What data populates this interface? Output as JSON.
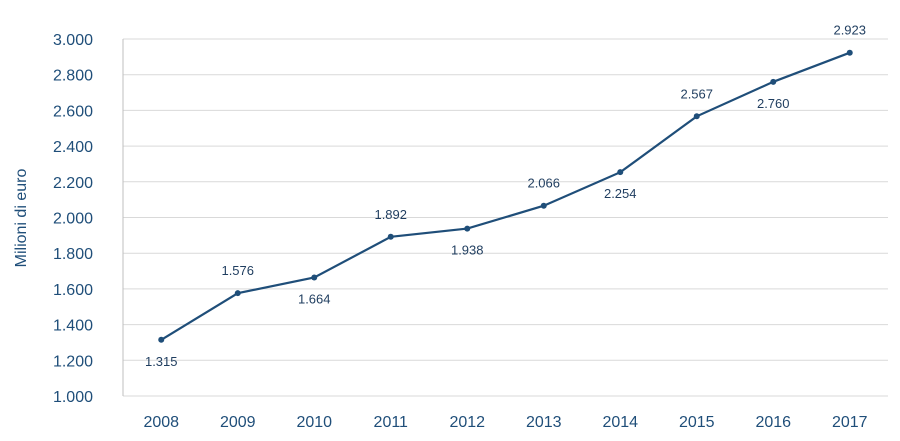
{
  "chart_data": {
    "type": "line",
    "title": "",
    "xlabel": "",
    "ylabel": "Milioni di euro",
    "categories": [
      "2008",
      "2009",
      "2010",
      "2011",
      "2012",
      "2013",
      "2014",
      "2015",
      "2016",
      "2017"
    ],
    "values": [
      1315,
      1576,
      1664,
      1892,
      1938,
      2066,
      2254,
      2567,
      2760,
      2923
    ],
    "data_labels": [
      "1.315",
      "1.576",
      "1.664",
      "1.892",
      "1.938",
      "2.066",
      "2.254",
      "2.567",
      "2.760",
      "2.923"
    ],
    "label_positions": [
      "below",
      "above",
      "below",
      "above",
      "below",
      "above",
      "below",
      "above",
      "below",
      "above"
    ],
    "ylim": [
      1000,
      3000
    ],
    "yticks": [
      1000,
      1200,
      1400,
      1600,
      1800,
      2000,
      2200,
      2400,
      2600,
      2800,
      3000
    ],
    "ytick_labels": [
      "1.000",
      "1.200",
      "1.400",
      "1.600",
      "1.800",
      "2.000",
      "2.200",
      "2.400",
      "2.600",
      "2.800",
      "3.000"
    ],
    "grid": true,
    "legend": "none",
    "colors": {
      "line": "#1f4e79",
      "grid": "#d9d9d9",
      "axis_text": "#1f4e79",
      "label_text": "#1f3d5f"
    }
  }
}
